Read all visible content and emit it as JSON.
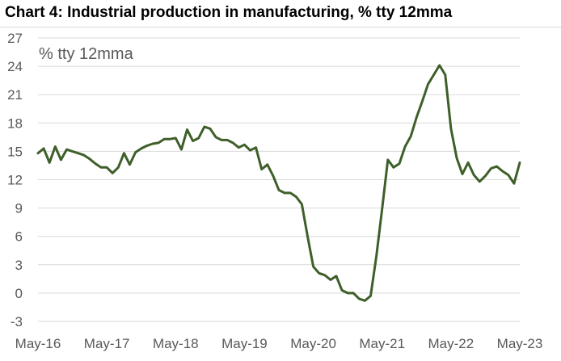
{
  "chart_data": {
    "type": "line",
    "title": "Chart 4: Industrial production in manufacturing, % tty 12mma",
    "annotation": "% tty 12mma",
    "xlabel": "",
    "ylabel": "",
    "ylim": [
      -3,
      27
    ],
    "yticks": [
      -3,
      0,
      3,
      6,
      9,
      12,
      15,
      18,
      21,
      24,
      27
    ],
    "xticks": [
      "May-16",
      "May-17",
      "May-18",
      "May-19",
      "May-20",
      "May-21",
      "May-22",
      "May-23"
    ],
    "grid": "horizontal",
    "legend": "none",
    "line_color": "#3f5f2a",
    "series": [
      {
        "values": [
          14.8,
          15.3,
          13.8,
          15.5,
          14.1,
          15.2,
          15.0,
          14.8,
          14.6,
          14.2,
          13.7,
          13.3,
          13.3,
          12.7,
          13.3,
          14.8,
          13.6,
          14.9,
          15.3,
          15.6,
          15.8,
          15.9,
          16.3,
          16.3,
          16.4,
          15.2,
          17.3,
          16.1,
          16.4,
          17.6,
          17.4,
          16.5,
          16.2,
          16.2,
          15.9,
          15.4,
          15.7,
          15.1,
          15.4,
          13.1,
          13.6,
          12.4,
          10.9,
          10.6,
          10.6,
          10.2,
          9.4,
          6.0,
          2.8,
          2.1,
          1.9,
          1.4,
          1.8,
          0.3,
          0.0,
          0.0,
          -0.6,
          -0.8,
          -0.3,
          3.9,
          8.9,
          14.1,
          13.3,
          13.7,
          15.5,
          16.6,
          18.6,
          20.3,
          22.1,
          23.1,
          24.1,
          23.1,
          17.4,
          14.3,
          12.6,
          13.8,
          12.5,
          11.8,
          12.4,
          13.2,
          13.4,
          12.9,
          12.5,
          11.6,
          13.8
        ]
      }
    ]
  }
}
